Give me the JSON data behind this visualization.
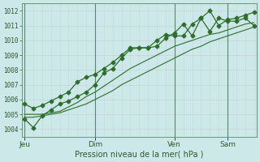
{
  "xlabel": "Pression niveau de la mer( hPa )",
  "bg_color": "#cce8e8",
  "grid_color_major": "#c8d8d8",
  "line_color": "#2d6e2d",
  "ylim": [
    1003.5,
    1012.5
  ],
  "yticks": [
    1004,
    1005,
    1006,
    1007,
    1008,
    1009,
    1010,
    1011,
    1012
  ],
  "n_points": 27,
  "day_positions": [
    0,
    8,
    17,
    23
  ],
  "day_labels": [
    "Jeu",
    "Dim",
    "Ven",
    "Sam"
  ],
  "series": [
    [
      1004.7,
      1004.1,
      1004.9,
      1005.3,
      1005.7,
      1005.9,
      1006.2,
      1006.5,
      1007.0,
      1007.8,
      1008.1,
      1008.8,
      1009.4,
      1009.5,
      1009.5,
      1009.6,
      1010.15,
      1010.5,
      1011.1,
      1010.3,
      1011.5,
      1012.0,
      1011.0,
      1011.4,
      1011.5,
      1011.7,
      1011.9
    ],
    [
      1005.7,
      1005.4,
      1005.6,
      1005.9,
      1006.2,
      1006.5,
      1007.2,
      1007.5,
      1007.7,
      1008.1,
      1008.5,
      1009.0,
      1009.5,
      1009.5,
      1009.5,
      1010.0,
      1010.4,
      1010.3,
      1010.3,
      1011.1,
      1011.5,
      1010.6,
      1011.5,
      1011.3,
      1011.3,
      1011.5,
      1011.0
    ],
    [
      1005.0,
      1005.0,
      1005.0,
      1005.1,
      1005.2,
      1005.5,
      1005.8,
      1006.2,
      1006.5,
      1006.9,
      1007.3,
      1007.7,
      1008.1,
      1008.4,
      1008.7,
      1009.0,
      1009.3,
      1009.6,
      1009.8,
      1010.0,
      1010.2,
      1010.4,
      1010.5,
      1010.7,
      1010.9,
      1011.1,
      1011.2
    ],
    [
      1004.8,
      1004.8,
      1004.9,
      1005.0,
      1005.1,
      1005.3,
      1005.5,
      1005.7,
      1006.0,
      1006.3,
      1006.6,
      1007.0,
      1007.3,
      1007.6,
      1007.9,
      1008.2,
      1008.5,
      1008.8,
      1009.1,
      1009.4,
      1009.6,
      1009.9,
      1010.1,
      1010.3,
      1010.5,
      1010.7,
      1010.9
    ]
  ],
  "series_with_markers": [
    0,
    1
  ],
  "marker_style": "D",
  "marker_size": 2.5
}
